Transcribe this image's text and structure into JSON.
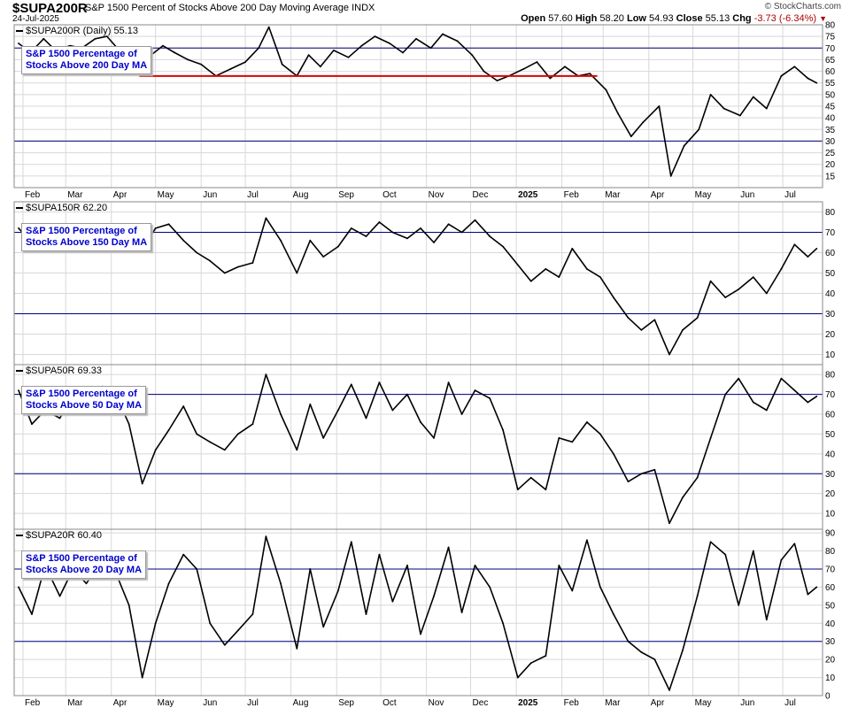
{
  "header": {
    "symbol": "$SUPA200R",
    "name": "S&P 1500 Percent of Stocks Above 200 Day Moving Average",
    "exchange": "INDX",
    "date": "24-Jul-2025",
    "credit": "© StockCharts.com",
    "ohlc": {
      "open_label": "Open",
      "open": "57.60",
      "high_label": "High",
      "high": "58.20",
      "low_label": "Low",
      "low": "54.93",
      "close_label": "Close",
      "close": "55.13",
      "chg_label": "Chg",
      "chg": "-3.73 (-6.34%)"
    }
  },
  "colors": {
    "series": "#000000",
    "reference_lines": "#000080",
    "support_line": "#dd0000",
    "grid": "#d8d8d8",
    "box_text": "#0000cc"
  },
  "chart_data": [
    {
      "type": "line",
      "tag": "$SUPA200R (Daily) 55.13",
      "box": "S&P 1500 Percentage of\nStocks Above 200 Day MA",
      "ylim": [
        10,
        80
      ],
      "yticks": [
        15,
        20,
        25,
        30,
        35,
        40,
        45,
        50,
        55,
        60,
        65,
        70,
        75,
        80
      ],
      "reference_lines": [
        70,
        30
      ],
      "support_line": {
        "from": "2024-04-20",
        "to": "2025-02-25",
        "value": 58
      },
      "series": [
        {
          "x": [
            "2024-01-29",
            "2024-02-06",
            "2024-02-15",
            "2024-02-23",
            "2024-03-04",
            "2024-03-12",
            "2024-03-21",
            "2024-03-29",
            "2024-04-05",
            "2024-04-12",
            "2024-04-19",
            "2024-04-26",
            "2024-05-06",
            "2024-05-14",
            "2024-05-23",
            "2024-06-01",
            "2024-06-11",
            "2024-06-21",
            "2024-07-01",
            "2024-07-10",
            "2024-07-17",
            "2024-07-26",
            "2024-08-05",
            "2024-08-13",
            "2024-08-21",
            "2024-08-30",
            "2024-09-09",
            "2024-09-18",
            "2024-09-27",
            "2024-10-07",
            "2024-10-16",
            "2024-10-25",
            "2024-11-04",
            "2024-11-12",
            "2024-11-22",
            "2024-12-02",
            "2024-12-10",
            "2024-12-19",
            "2024-12-27",
            "2025-01-06",
            "2025-01-15",
            "2025-01-24",
            "2025-02-03",
            "2025-02-12",
            "2025-02-20",
            "2025-03-03",
            "2025-03-11",
            "2025-03-20",
            "2025-03-28",
            "2025-04-08",
            "2025-04-16",
            "2025-04-25",
            "2025-05-05",
            "2025-05-13",
            "2025-05-22",
            "2025-06-02",
            "2025-06-11",
            "2025-06-20",
            "2025-06-30",
            "2025-07-09",
            "2025-07-18",
            "2025-07-24"
          ],
          "values": [
            72,
            68,
            74,
            69,
            71,
            70,
            74,
            75,
            70,
            64,
            59,
            66,
            71,
            68,
            65,
            63,
            58,
            61,
            64,
            70,
            79,
            63,
            58,
            67,
            62,
            69,
            66,
            71,
            75,
            72,
            68,
            74,
            70,
            76,
            73,
            67,
            60,
            56,
            58,
            61,
            64,
            57,
            62,
            58,
            59,
            52,
            42,
            32,
            38,
            45,
            15,
            28,
            35,
            50,
            44,
            41,
            49,
            44,
            58,
            62,
            57,
            55
          ]
        }
      ]
    },
    {
      "type": "line",
      "tag": "$SUPA150R 62.20",
      "box": "S&P 1500 Percentage of\nStocks Above 150 Day MA",
      "ylim": [
        5,
        85
      ],
      "yticks": [
        10,
        20,
        30,
        40,
        50,
        60,
        70,
        80
      ],
      "reference_lines": [
        70,
        30
      ],
      "series": [
        {
          "x": [
            "2024-01-29",
            "2024-02-07",
            "2024-02-16",
            "2024-02-26",
            "2024-03-06",
            "2024-03-15",
            "2024-03-26",
            "2024-04-04",
            "2024-04-13",
            "2024-04-22",
            "2024-05-01",
            "2024-05-10",
            "2024-05-20",
            "2024-05-29",
            "2024-06-07",
            "2024-06-17",
            "2024-06-26",
            "2024-07-06",
            "2024-07-15",
            "2024-07-25",
            "2024-08-05",
            "2024-08-14",
            "2024-08-23",
            "2024-09-02",
            "2024-09-11",
            "2024-09-21",
            "2024-09-30",
            "2024-10-09",
            "2024-10-19",
            "2024-10-28",
            "2024-11-06",
            "2024-11-16",
            "2024-11-25",
            "2024-12-04",
            "2024-12-14",
            "2024-12-23",
            "2025-01-02",
            "2025-01-11",
            "2025-01-21",
            "2025-01-30",
            "2025-02-08",
            "2025-02-18",
            "2025-02-27",
            "2025-03-08",
            "2025-03-18",
            "2025-03-27",
            "2025-04-05",
            "2025-04-15",
            "2025-04-24",
            "2025-05-04",
            "2025-05-13",
            "2025-05-23",
            "2025-06-01",
            "2025-06-11",
            "2025-06-20",
            "2025-06-30",
            "2025-07-09",
            "2025-07-18",
            "2025-07-24"
          ],
          "values": [
            72,
            65,
            68,
            64,
            70,
            67,
            72,
            74,
            70,
            62,
            72,
            74,
            66,
            60,
            56,
            50,
            53,
            55,
            77,
            66,
            50,
            66,
            58,
            63,
            72,
            68,
            75,
            70,
            67,
            72,
            65,
            74,
            70,
            76,
            68,
            63,
            54,
            46,
            52,
            48,
            62,
            52,
            48,
            38,
            28,
            22,
            27,
            10,
            22,
            28,
            46,
            38,
            42,
            48,
            40,
            52,
            64,
            58,
            62
          ]
        }
      ]
    },
    {
      "type": "line",
      "tag": "$SUPA50R 69.33",
      "box": "S&P 1500 Percentage of\nStocks Above 50 Day MA",
      "ylim": [
        2,
        85
      ],
      "yticks": [
        10,
        20,
        30,
        40,
        50,
        60,
        70,
        80
      ],
      "reference_lines": [
        70,
        30
      ],
      "series": [
        {
          "x": [
            "2024-01-29",
            "2024-02-07",
            "2024-02-16",
            "2024-02-26",
            "2024-03-06",
            "2024-03-15",
            "2024-03-26",
            "2024-04-04",
            "2024-04-13",
            "2024-04-22",
            "2024-05-01",
            "2024-05-10",
            "2024-05-20",
            "2024-05-29",
            "2024-06-07",
            "2024-06-17",
            "2024-06-26",
            "2024-07-06",
            "2024-07-15",
            "2024-07-25",
            "2024-08-05",
            "2024-08-14",
            "2024-08-23",
            "2024-09-02",
            "2024-09-11",
            "2024-09-21",
            "2024-09-30",
            "2024-10-09",
            "2024-10-19",
            "2024-10-28",
            "2024-11-06",
            "2024-11-16",
            "2024-11-25",
            "2024-12-04",
            "2024-12-14",
            "2024-12-23",
            "2025-01-02",
            "2025-01-11",
            "2025-01-21",
            "2025-01-30",
            "2025-02-08",
            "2025-02-18",
            "2025-02-27",
            "2025-03-08",
            "2025-03-18",
            "2025-03-27",
            "2025-04-05",
            "2025-04-15",
            "2025-04-24",
            "2025-05-04",
            "2025-05-13",
            "2025-05-23",
            "2025-06-01",
            "2025-06-11",
            "2025-06-20",
            "2025-06-30",
            "2025-07-09",
            "2025-07-18",
            "2025-07-24"
          ],
          "values": [
            72,
            55,
            62,
            58,
            70,
            64,
            74,
            70,
            55,
            25,
            42,
            52,
            64,
            50,
            46,
            42,
            50,
            55,
            80,
            60,
            42,
            65,
            48,
            62,
            75,
            58,
            76,
            62,
            70,
            56,
            48,
            76,
            60,
            72,
            68,
            52,
            22,
            28,
            22,
            48,
            46,
            56,
            50,
            40,
            26,
            30,
            32,
            5,
            18,
            28,
            48,
            70,
            78,
            66,
            62,
            78,
            72,
            66,
            69
          ]
        }
      ]
    },
    {
      "type": "line",
      "tag": "$SUPA20R 60.40",
      "box": "S&P 1500 Percentage of\nStocks Above 20 Day MA",
      "ylim": [
        0,
        92
      ],
      "yticks": [
        0,
        10,
        20,
        30,
        40,
        50,
        60,
        70,
        80,
        90
      ],
      "reference_lines": [
        70,
        30
      ],
      "series": [
        {
          "x": [
            "2024-01-29",
            "2024-02-07",
            "2024-02-16",
            "2024-02-26",
            "2024-03-06",
            "2024-03-15",
            "2024-03-26",
            "2024-04-04",
            "2024-04-13",
            "2024-04-22",
            "2024-05-01",
            "2024-05-10",
            "2024-05-20",
            "2024-05-29",
            "2024-06-07",
            "2024-06-17",
            "2024-06-26",
            "2024-07-06",
            "2024-07-15",
            "2024-07-25",
            "2024-08-05",
            "2024-08-14",
            "2024-08-23",
            "2024-09-02",
            "2024-09-11",
            "2024-09-21",
            "2024-09-30",
            "2024-10-09",
            "2024-10-19",
            "2024-10-28",
            "2024-11-06",
            "2024-11-16",
            "2024-11-25",
            "2024-12-04",
            "2024-12-14",
            "2024-12-23",
            "2025-01-02",
            "2025-01-11",
            "2025-01-21",
            "2025-01-30",
            "2025-02-08",
            "2025-02-18",
            "2025-02-27",
            "2025-03-08",
            "2025-03-18",
            "2025-03-27",
            "2025-04-05",
            "2025-04-15",
            "2025-04-24",
            "2025-05-04",
            "2025-05-13",
            "2025-05-23",
            "2025-06-01",
            "2025-06-11",
            "2025-06-20",
            "2025-06-30",
            "2025-07-09",
            "2025-07-18",
            "2025-07-24"
          ],
          "values": [
            60,
            45,
            72,
            55,
            70,
            62,
            75,
            68,
            50,
            10,
            40,
            62,
            78,
            70,
            40,
            28,
            36,
            45,
            88,
            62,
            26,
            70,
            38,
            58,
            85,
            45,
            78,
            52,
            72,
            34,
            55,
            82,
            46,
            72,
            60,
            40,
            10,
            18,
            22,
            72,
            58,
            86,
            60,
            45,
            30,
            24,
            20,
            3,
            25,
            55,
            85,
            78,
            50,
            80,
            42,
            75,
            84,
            56,
            60
          ]
        }
      ]
    }
  ],
  "x_axis": {
    "labels": [
      "Feb",
      "Mar",
      "Apr",
      "May",
      "Jun",
      "Jul",
      "Aug",
      "Sep",
      "Oct",
      "Nov",
      "Dec",
      "2025",
      "Feb",
      "Mar",
      "Apr",
      "May",
      "Jun",
      "Jul"
    ],
    "ticks": [
      "2024-02-01",
      "2024-03-01",
      "2024-04-01",
      "2024-05-01",
      "2024-06-01",
      "2024-07-01",
      "2024-08-01",
      "2024-09-01",
      "2024-10-01",
      "2024-11-01",
      "2024-12-01",
      "2025-01-01",
      "2025-02-01",
      "2025-03-01",
      "2025-04-01",
      "2025-05-01",
      "2025-06-01",
      "2025-07-01"
    ]
  }
}
